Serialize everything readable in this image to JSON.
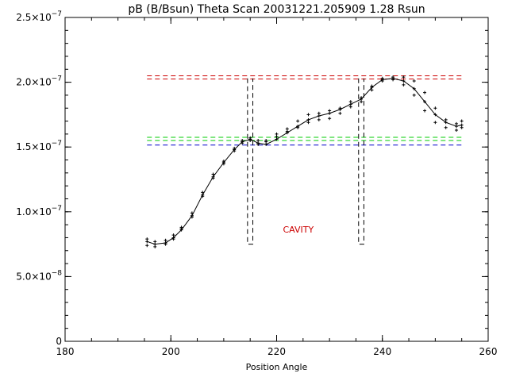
{
  "chart_data": {
    "type": "scatter",
    "title": "pB (B/Bsun) Theta Scan 20031221.205909 1.28 Rsun",
    "xlabel": "Position Angle",
    "ylabel": "",
    "xlim": [
      180,
      260
    ],
    "ylim": [
      0,
      2.5e-07
    ],
    "x_ticks": [
      {
        "value": 180,
        "label": "180"
      },
      {
        "value": 200,
        "label": "200"
      },
      {
        "value": 220,
        "label": "220"
      },
      {
        "value": 240,
        "label": "240"
      },
      {
        "value": 260,
        "label": "260"
      }
    ],
    "y_ticks": [
      {
        "value": 0,
        "base": "0",
        "exp": ""
      },
      {
        "value": 5e-08,
        "base": "5.0×10",
        "exp": "−8"
      },
      {
        "value": 1e-07,
        "base": "1.0×10",
        "exp": "−7"
      },
      {
        "value": 1.5e-07,
        "base": "1.5×10",
        "exp": "−7"
      },
      {
        "value": 2e-07,
        "base": "2.0×10",
        "exp": "−7"
      },
      {
        "value": 2.5e-07,
        "base": "2.5×10",
        "exp": "−7"
      }
    ],
    "x_minor_step": 5,
    "y_minor_step": 1e-08,
    "grid": false,
    "series": [
      {
        "style": "points-and-line",
        "color": "#000000",
        "x": [
          195.5,
          197,
          199,
          200.5,
          202,
          204,
          206,
          208,
          210,
          212,
          213.5,
          215,
          216.5,
          218,
          220,
          222,
          224,
          226,
          228,
          230,
          232,
          234,
          236,
          238,
          240,
          242,
          244,
          246,
          248,
          250,
          252,
          254,
          255
        ],
        "y": [
          7.7e-08,
          7.5e-08,
          7.6e-08,
          8e-08,
          8.6e-08,
          9.7e-08,
          1.13e-07,
          1.27e-07,
          1.38e-07,
          1.48e-07,
          1.54e-07,
          1.56e-07,
          1.53e-07,
          1.52e-07,
          1.56e-07,
          1.61e-07,
          1.66e-07,
          1.71e-07,
          1.74e-07,
          1.76e-07,
          1.79e-07,
          1.83e-07,
          1.87e-07,
          1.96e-07,
          2.02e-07,
          2.03e-07,
          2.01e-07,
          1.95e-07,
          1.85e-07,
          1.75e-07,
          1.69e-07,
          1.66e-07,
          1.67e-07
        ]
      },
      {
        "style": "points",
        "color": "#000000",
        "x": [
          195.5,
          197,
          199,
          200.5,
          202,
          204,
          206,
          208,
          210,
          212,
          213.5,
          215,
          216.5,
          218,
          220,
          222,
          224,
          226,
          228,
          230,
          232,
          234,
          236,
          238,
          240,
          242,
          244,
          246,
          248,
          250,
          252,
          254,
          255
        ],
        "y": [
          7.4e-08,
          7.3e-08,
          7.5e-08,
          7.9e-08,
          8.8e-08,
          9.9e-08,
          1.15e-07,
          1.29e-07,
          1.39e-07,
          1.49e-07,
          1.55e-07,
          1.55e-07,
          1.52e-07,
          1.55e-07,
          1.6e-07,
          1.64e-07,
          1.7e-07,
          1.75e-07,
          1.71e-07,
          1.72e-07,
          1.76e-07,
          1.81e-07,
          1.85e-07,
          1.94e-07,
          2.01e-07,
          2.02e-07,
          1.98e-07,
          1.9e-07,
          1.78e-07,
          1.69e-07,
          1.65e-07,
          1.63e-07,
          1.65e-07
        ]
      },
      {
        "style": "points",
        "color": "#000000",
        "x": [
          195.5,
          197,
          199,
          200.5,
          202,
          204,
          206,
          208,
          210,
          212,
          213.5,
          215,
          216.5,
          218,
          220,
          222,
          224,
          226,
          228,
          230,
          232,
          234,
          236,
          238,
          240,
          242,
          244,
          246,
          248,
          250,
          252,
          254,
          255
        ],
        "y": [
          7.9e-08,
          7.7e-08,
          7.8e-08,
          8.2e-08,
          8.7e-08,
          9.6e-08,
          1.12e-07,
          1.26e-07,
          1.37e-07,
          1.47e-07,
          1.53e-07,
          1.57e-07,
          1.55e-07,
          1.54e-07,
          1.58e-07,
          1.62e-07,
          1.65e-07,
          1.69e-07,
          1.76e-07,
          1.78e-07,
          1.8e-07,
          1.85e-07,
          1.88e-07,
          1.97e-07,
          2.03e-07,
          2.04e-07,
          2.04e-07,
          2.01e-07,
          1.92e-07,
          1.8e-07,
          1.71e-07,
          1.68e-07,
          1.7e-07
        ]
      }
    ],
    "reference_lines": [
      {
        "style": "dashed",
        "color": "#cc0000",
        "y": 2.05e-07,
        "x_range": [
          195.5,
          255.5
        ]
      },
      {
        "style": "dashed",
        "color": "#cc0000",
        "y": 2.025e-07,
        "x_range": [
          195.5,
          255.5
        ]
      },
      {
        "style": "dashed",
        "color": "#00cc00",
        "y": 1.575e-07,
        "x_range": [
          195.5,
          255.5
        ]
      },
      {
        "style": "dashed",
        "color": "#00cc00",
        "y": 1.55e-07,
        "x_range": [
          195.5,
          255.5
        ]
      },
      {
        "style": "dashed",
        "color": "#0000cc",
        "y": 1.515e-07,
        "x_range": [
          195.5,
          255.5
        ]
      }
    ],
    "cavity_boundaries": [
      {
        "style": "dashed",
        "color": "#000000",
        "x": [
          214.5,
          215.5
        ],
        "y_range": [
          7.5e-08,
          2.03e-07
        ]
      },
      {
        "style": "dashed",
        "color": "#000000",
        "x": [
          235.5,
          236.5
        ],
        "y_range": [
          7.5e-08,
          2.03e-07
        ]
      }
    ],
    "annotations": [
      {
        "text": "CAVITY",
        "color": "#cc0000",
        "x": 221.2,
        "y": 8.4e-08
      }
    ]
  }
}
